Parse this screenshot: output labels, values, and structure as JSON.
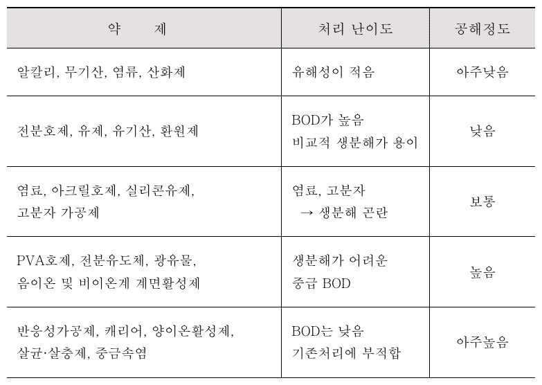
{
  "table": {
    "type": "table",
    "background_color": "#ffffff",
    "text_color": "#000000",
    "header_bg_color": "#e8e4e4",
    "header_dotted_pattern": true,
    "font_family": "serif-batang",
    "body_fontsize_pt": 19,
    "header_fontsize_pt": 20,
    "line_height": 1.7,
    "border_color": "#000000",
    "outer_border_width": 2,
    "row_border_width": 1,
    "colsep_border_width": 1.5,
    "columns": [
      {
        "key": "chemical",
        "label": "약     제",
        "width_pct": 52,
        "align": "left",
        "header_align": "center",
        "header_letterspacing_em": 1.0
      },
      {
        "key": "difficulty",
        "label": "처리 난이도",
        "width_pct": 28,
        "align": "left",
        "header_align": "center"
      },
      {
        "key": "pollution",
        "label": "공해정도",
        "width_pct": 20,
        "align": "center",
        "header_align": "center"
      }
    ],
    "rows": [
      {
        "chemical": "알칼리, 무기산, 염류, 산화제",
        "difficulty": "유해성이 적음",
        "pollution": "아주낮음"
      },
      {
        "chemical": "전분호제, 유제, 유기산, 환원제",
        "difficulty": "BOD가 높음\n비교적 생분해가 용이",
        "pollution": "낮음"
      },
      {
        "chemical": "염료, 아크릴호제, 실리콘유제,\n고분자 가공제",
        "difficulty": "염료, 고분자\n  → 생분해 곤란",
        "pollution": "보통"
      },
      {
        "chemical": "PVA호제, 전분유도체, 광유물,\n음이온 및 비이온계 계면활성제",
        "difficulty": "생분해가 어려운\n중급 BOD",
        "pollution": "높음"
      },
      {
        "chemical": "반응성가공제, 캐리어, 양이온활성제,\n살균·살충제, 중금속염",
        "difficulty": "BOD는 낮음\n기존처리에 부적합",
        "pollution": "아주높음"
      }
    ]
  }
}
